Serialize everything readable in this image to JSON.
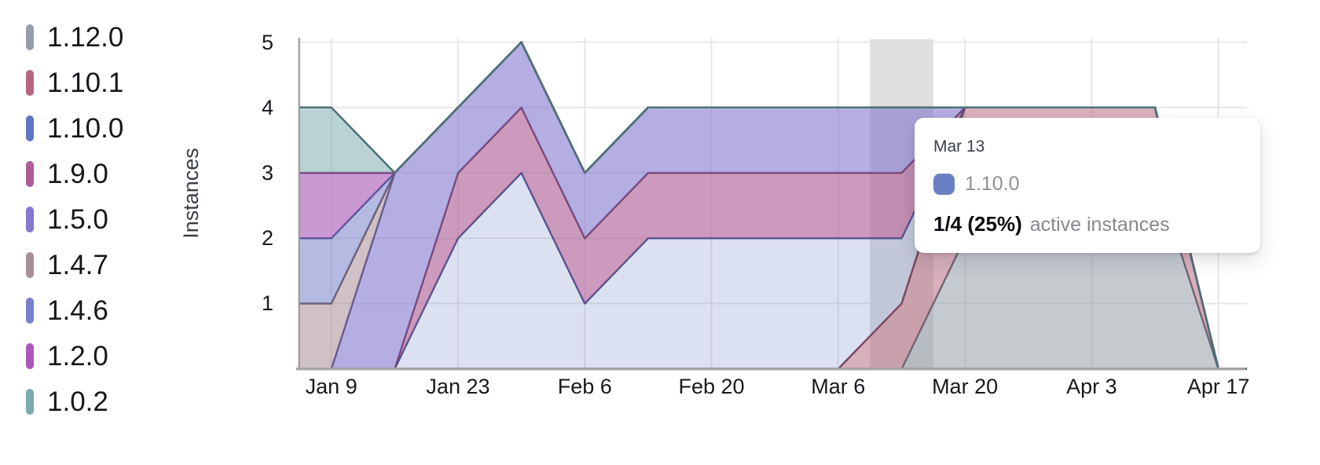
{
  "tooltip": {
    "title": "Mar 13",
    "series": "1.10.0",
    "swatch_color": "#6b7fc4",
    "value": "1/4 (25%)",
    "caption": "active instances"
  },
  "chart_data": {
    "type": "area",
    "stacked": true,
    "title": "",
    "xlabel": "",
    "ylabel": "Instances",
    "ylim": [
      0,
      5
    ],
    "grid": true,
    "legend_position": "left",
    "highlight_x": "Mar 13",
    "highlight_color": "#dfdfdf",
    "grid_color": "#e7e7e7",
    "axis_color": "#a5a5a5",
    "x": [
      "Jan 2",
      "Jan 9",
      "Jan 16",
      "Jan 23",
      "Jan 30",
      "Feb 6",
      "Feb 13",
      "Feb 20",
      "Feb 27",
      "Mar 6",
      "Mar 13",
      "Mar 20",
      "Mar 27",
      "Apr 3",
      "Apr 10",
      "Apr 17"
    ],
    "x_ticks": [
      "Jan 9",
      "Jan 23",
      "Feb 6",
      "Feb 20",
      "Mar 6",
      "Mar 20",
      "Apr 3",
      "Apr 17"
    ],
    "y_ticks": [
      "5",
      "4",
      "3",
      "2",
      "1"
    ],
    "series": [
      {
        "name": "1.12.0",
        "color": "#969ea7",
        "stroke": "#5f666e",
        "fill_opacity": 0.55,
        "values": [
          0,
          0,
          0,
          0,
          0,
          0,
          0,
          0,
          0,
          0,
          0,
          2,
          3,
          3,
          3,
          0
        ]
      },
      {
        "name": "1.10.1",
        "color": "#b5687f",
        "stroke": "#7e4256",
        "fill_opacity": 0.52,
        "values": [
          0,
          0,
          0,
          0,
          0,
          0,
          0,
          0,
          0,
          0,
          1,
          2,
          1,
          1,
          1,
          0
        ]
      },
      {
        "name": "1.10.0",
        "color": "#5e76c2",
        "stroke": "#3c4f8e",
        "fill_opacity": 0.22,
        "values": [
          0,
          0,
          0,
          2,
          3,
          1,
          2,
          2,
          2,
          2,
          1,
          0,
          0,
          0,
          0,
          0
        ]
      },
      {
        "name": "1.9.0",
        "color": "#ad5c95",
        "stroke": "#753a63",
        "fill_opacity": 0.62,
        "values": [
          0,
          0,
          0,
          1,
          1,
          1,
          1,
          1,
          1,
          1,
          1,
          0,
          0,
          0,
          0,
          0
        ]
      },
      {
        "name": "1.5.0",
        "color": "#8478cf",
        "stroke": "#524e8e",
        "fill_opacity": 0.6,
        "values": [
          0,
          0,
          3,
          1,
          1,
          1,
          1,
          1,
          1,
          1,
          1,
          0,
          0,
          0,
          0,
          0
        ]
      },
      {
        "name": "1.4.7",
        "color": "#a88e97",
        "stroke": "#6e5760",
        "fill_opacity": 0.55,
        "values": [
          1,
          1,
          0,
          0,
          0,
          0,
          0,
          0,
          0,
          0,
          0,
          0,
          0,
          0,
          0,
          0
        ]
      },
      {
        "name": "1.4.6",
        "color": "#7781ca",
        "stroke": "#4b5592",
        "fill_opacity": 0.55,
        "values": [
          1,
          1,
          0,
          0,
          0,
          0,
          0,
          0,
          0,
          0,
          0,
          0,
          0,
          0,
          0,
          0
        ]
      },
      {
        "name": "1.2.0",
        "color": "#a958b8",
        "stroke": "#71337d",
        "fill_opacity": 0.62,
        "values": [
          1,
          1,
          0,
          0,
          0,
          0,
          0,
          0,
          0,
          0,
          0,
          0,
          0,
          0,
          0,
          0
        ]
      },
      {
        "name": "1.0.2",
        "color": "#7caaad",
        "stroke": "#4d7276",
        "fill_opacity": 0.53,
        "values": [
          1,
          1,
          0,
          0,
          0,
          0,
          0,
          0,
          0,
          0,
          0,
          0,
          0,
          0,
          0,
          0
        ]
      }
    ]
  }
}
